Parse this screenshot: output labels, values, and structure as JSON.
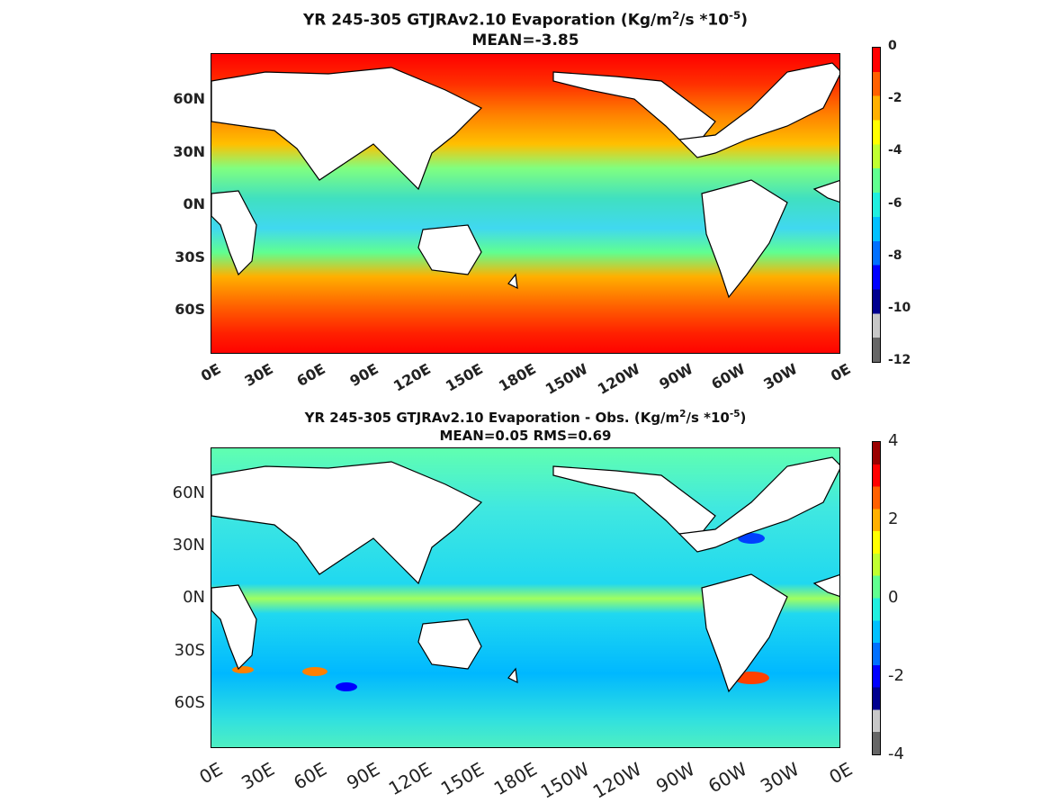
{
  "chart_data": [
    {
      "type": "heatmap",
      "title_main": "YR 245-305 GTJRAv2.10  Evaporation (Kg/m",
      "title_sup1": "2",
      "title_mid": "/s *10",
      "title_sup2": "-5",
      "title_end": ")",
      "subtitle": "MEAN=-3.85",
      "mean": -3.85,
      "x_ticks": [
        "0E",
        "30E",
        "60E",
        "90E",
        "120E",
        "150E",
        "180E",
        "150W",
        "120W",
        "90W",
        "60W",
        "30W",
        "0E"
      ],
      "y_ticks": [
        "60N",
        "30N",
        "0N",
        "30S",
        "60S"
      ],
      "colorbar_ticks": [
        "0",
        "-2",
        "-4",
        "-6",
        "-8",
        "-10",
        "-12"
      ],
      "colorbar_range": [
        -12,
        0
      ],
      "colormap": [
        "#666666",
        "#c8c8c8",
        "#00008f",
        "#0000ff",
        "#0070ff",
        "#00c0ff",
        "#20f0e0",
        "#60ff90",
        "#c0ff30",
        "#ffff00",
        "#ffb000",
        "#ff6000",
        "#ff0000"
      ]
    },
    {
      "type": "heatmap",
      "title_main": "YR 245-305 GTJRAv2.10 Evaporation - Obs. (Kg/m",
      "title_sup1": "2",
      "title_mid": "/s *10",
      "title_sup2": "-5",
      "title_end": ")",
      "subtitle": "MEAN=0.05   RMS=0.69",
      "mean": 0.05,
      "rms": 0.69,
      "x_ticks": [
        "0E",
        "30E",
        "60E",
        "90E",
        "120E",
        "150E",
        "180E",
        "150W",
        "120W",
        "90W",
        "60W",
        "30W",
        "0E"
      ],
      "y_ticks": [
        "60N",
        "30N",
        "0N",
        "30S",
        "60S"
      ],
      "colorbar_ticks": [
        "4",
        "2",
        "0",
        "-2",
        "-4"
      ],
      "colorbar_range": [
        -4,
        4
      ],
      "colormap": [
        "#666666",
        "#c8c8c8",
        "#00008f",
        "#0000ff",
        "#0070ff",
        "#00c0ff",
        "#20f0e0",
        "#60ff90",
        "#c0ff30",
        "#ffff00",
        "#ffb000",
        "#ff6000",
        "#ff0000",
        "#9a0000"
      ]
    }
  ]
}
